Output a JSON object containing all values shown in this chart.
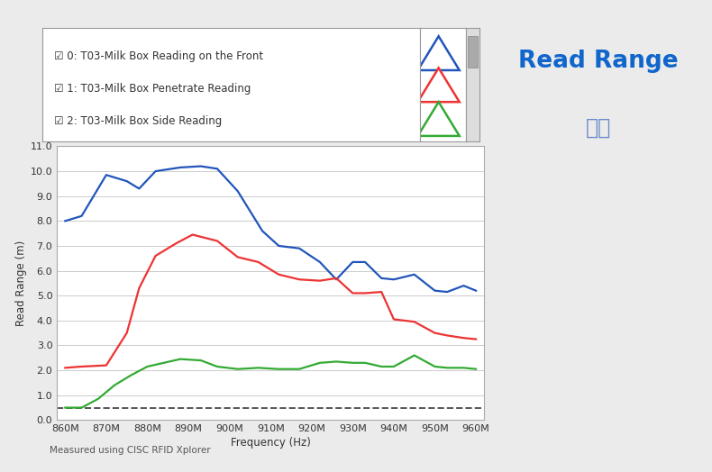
{
  "freq_labels": [
    "860M",
    "870M",
    "880M",
    "890M",
    "900M",
    "910M",
    "920M",
    "930M",
    "940M",
    "950M",
    "960M"
  ],
  "freq_values": [
    860,
    870,
    880,
    890,
    900,
    910,
    920,
    930,
    940,
    950,
    960
  ],
  "blue_data": {
    "x": [
      860,
      864,
      870,
      875,
      878,
      882,
      888,
      893,
      897,
      902,
      908,
      912,
      917,
      922,
      926,
      930,
      933,
      937,
      940,
      945,
      950,
      953,
      957,
      960
    ],
    "y": [
      8.0,
      8.2,
      9.85,
      9.6,
      9.3,
      10.0,
      10.15,
      10.2,
      10.1,
      9.2,
      7.6,
      7.0,
      6.9,
      6.35,
      5.65,
      6.35,
      6.35,
      5.7,
      5.65,
      5.85,
      5.2,
      5.15,
      5.4,
      5.2
    ],
    "color": "#2255bb",
    "label": "0: T03-Milk Box Reading on the Front"
  },
  "red_data": {
    "x": [
      860,
      864,
      870,
      875,
      878,
      882,
      887,
      891,
      897,
      902,
      907,
      912,
      917,
      922,
      926,
      930,
      933,
      937,
      940,
      945,
      950,
      953,
      957,
      960
    ],
    "y": [
      2.1,
      2.15,
      2.2,
      3.5,
      5.3,
      6.6,
      7.1,
      7.45,
      7.2,
      6.55,
      6.35,
      5.85,
      5.65,
      5.6,
      5.7,
      5.1,
      5.1,
      5.15,
      4.05,
      3.95,
      3.5,
      3.4,
      3.3,
      3.25
    ],
    "color": "#ee3333",
    "label": "1: T03-Milk Box Penetrate Reading"
  },
  "green_data": {
    "x": [
      860,
      864,
      868,
      872,
      876,
      880,
      884,
      888,
      893,
      897,
      902,
      907,
      912,
      917,
      922,
      926,
      930,
      933,
      937,
      940,
      945,
      950,
      953,
      957,
      960
    ],
    "y": [
      0.5,
      0.5,
      0.85,
      1.4,
      1.8,
      2.15,
      2.3,
      2.45,
      2.4,
      2.15,
      2.05,
      2.1,
      2.05,
      2.05,
      2.3,
      2.35,
      2.3,
      2.3,
      2.15,
      2.15,
      2.6,
      2.15,
      2.1,
      2.1,
      2.05
    ],
    "color": "#33aa33",
    "label": "2: T03-Milk Box Side Reading"
  },
  "dashed_y": 0.5,
  "ylim": [
    0.0,
    11.0
  ],
  "xlim": [
    858,
    962
  ],
  "ylabel": "Read Range (m)",
  "xlabel": "Frequency (Hz)",
  "title": "Read Range",
  "subtitle": "读距",
  "footnote": "Measured using CISC RFID Xplorer",
  "title_color": "#1166cc",
  "subtitle_color": "#6688cc",
  "bg_color": "#ebebeb",
  "plot_bg_color": "#ffffff",
  "yticks": [
    0.0,
    1.0,
    2.0,
    3.0,
    4.0,
    5.0,
    6.0,
    7.0,
    8.0,
    9.0,
    10.0,
    11.0
  ]
}
